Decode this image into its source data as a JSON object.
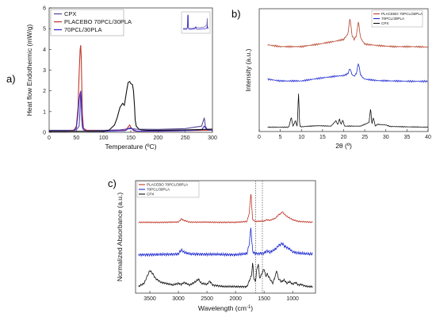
{
  "chart_data": [
    {
      "panel": "a)",
      "type": "line",
      "xlabel": "Temperature (ºC)",
      "ylabel": "Heat flow Endothermic (mW/g)",
      "xlim": [
        0,
        300
      ],
      "ylim": [
        0,
        6
      ],
      "xticks": [
        0,
        50,
        100,
        150,
        200,
        250,
        300
      ],
      "yticks": [
        0,
        1,
        2,
        3,
        4,
        5,
        6
      ],
      "legend_position": "top-left",
      "grid": false,
      "inset": true,
      "series": [
        {
          "name": "CPX",
          "color": "#5b4a9c",
          "x": [
            0,
            40,
            50,
            55,
            57,
            58,
            59,
            60,
            61,
            63,
            70,
            100,
            130,
            140,
            150,
            160,
            200,
            250,
            280,
            285,
            287,
            290,
            300
          ],
          "y": [
            0.1,
            0.1,
            0.12,
            0.3,
            1.2,
            2.0,
            1.5,
            0.6,
            0.25,
            0.12,
            0.1,
            0.1,
            0.12,
            0.15,
            0.18,
            0.15,
            0.14,
            0.18,
            0.3,
            0.7,
            0.3,
            0.15,
            0.15
          ]
        },
        {
          "name": "PLACEBO 70PCL/30PLA",
          "color": "#c0392b",
          "x": [
            0,
            30,
            45,
            50,
            53,
            55,
            57,
            58,
            59,
            60,
            61,
            63,
            70,
            100,
            140,
            145,
            148,
            150,
            155,
            160,
            200,
            250,
            300
          ],
          "y": [
            0.05,
            0.05,
            0.08,
            0.3,
            1.2,
            2.8,
            4.0,
            4.2,
            3.6,
            2.2,
            0.9,
            0.2,
            0.08,
            0.05,
            0.1,
            0.25,
            0.35,
            0.25,
            0.08,
            0.05,
            0.05,
            0.08,
            0.1
          ]
        },
        {
          "name": "70PCL/30PLA",
          "color": "#3a2bd0",
          "x": [
            0,
            30,
            45,
            50,
            53,
            55,
            57,
            58,
            59,
            60,
            61,
            63,
            70,
            100,
            140,
            145,
            150,
            155,
            160,
            200,
            250,
            280,
            285,
            290,
            300
          ],
          "y": [
            0.05,
            0.05,
            0.06,
            0.2,
            0.9,
            1.6,
            1.9,
            1.95,
            1.6,
            0.9,
            0.4,
            0.12,
            0.05,
            0.05,
            0.08,
            0.18,
            0.22,
            0.12,
            0.06,
            0.06,
            0.08,
            0.12,
            0.3,
            0.12,
            0.1
          ]
        },
        {
          "name": "",
          "color": "#111111",
          "x": [
            0,
            50,
            100,
            110,
            120,
            125,
            130,
            135,
            138,
            140,
            143,
            145,
            148,
            150,
            153,
            155,
            157,
            158,
            160,
            165,
            170,
            180,
            200,
            250,
            300
          ],
          "y": [
            0.05,
            0.05,
            0.05,
            0.1,
            0.35,
            0.7,
            1.2,
            1.4,
            1.3,
            1.6,
            2.1,
            2.4,
            2.45,
            2.35,
            2.3,
            2.0,
            1.2,
            0.6,
            0.3,
            0.15,
            0.12,
            0.1,
            0.1,
            0.12,
            0.15
          ]
        }
      ]
    },
    {
      "panel": "b)",
      "type": "line",
      "xlabel": "2θ (º)",
      "ylabel": "Intensity (a.u.)",
      "xlim": [
        0,
        40
      ],
      "xticks": [
        0,
        5,
        10,
        15,
        20,
        25,
        30,
        35,
        40
      ],
      "legend_position": "top-right",
      "series": [
        {
          "name": "PLACEBO 70PCL/30PLA",
          "color": "#b5432a",
          "offset": 2.2,
          "x": [
            2,
            5,
            10,
            14,
            18,
            20,
            21,
            21.5,
            22,
            22.5,
            23,
            23.5,
            24,
            24.5,
            25,
            28,
            32,
            36,
            40
          ],
          "y": [
            0.1,
            0.05,
            0.05,
            0.12,
            0.2,
            0.25,
            0.4,
            0.85,
            0.35,
            0.25,
            0.35,
            0.75,
            0.3,
            0.2,
            0.12,
            0.08,
            0.05,
            0.05,
            0.04
          ]
        },
        {
          "name": "70PCL/30PLA",
          "color": "#1f2ad0",
          "offset": 1.25,
          "x": [
            2,
            5,
            10,
            14,
            18,
            20,
            21,
            21.5,
            22,
            22.5,
            23,
            23.5,
            24,
            24.5,
            25,
            28,
            32,
            36,
            40
          ],
          "y": [
            0.1,
            0.05,
            0.05,
            0.12,
            0.18,
            0.2,
            0.25,
            0.4,
            0.22,
            0.18,
            0.25,
            0.55,
            0.22,
            0.15,
            0.1,
            0.06,
            0.05,
            0.04,
            0.04
          ]
        },
        {
          "name": "CPX",
          "color": "#111111",
          "offset": 0,
          "x": [
            2,
            7,
            7.6,
            8,
            8.6,
            9,
            9.3,
            9.6,
            10,
            12,
            14,
            17,
            18.2,
            18.6,
            19,
            19.4,
            19.8,
            20.2,
            22,
            24,
            26,
            26.4,
            26.7,
            27,
            27.5,
            28,
            30,
            31,
            35,
            40
          ],
          "y": [
            0.02,
            0.02,
            0.3,
            0.05,
            0.2,
            0.02,
            1.0,
            0.05,
            0.03,
            0.05,
            0.06,
            0.05,
            0.2,
            0.08,
            0.25,
            0.1,
            0.22,
            0.05,
            0.05,
            0.05,
            0.15,
            0.55,
            0.1,
            0.3,
            0.05,
            0.1,
            0.08,
            0.04,
            0.03,
            0.02
          ]
        }
      ]
    },
    {
      "panel": "c)",
      "type": "line",
      "xlabel": "Wavelength (cm-1)",
      "ylabel": "Normalized Absorbance (a.u.)",
      "xlim": [
        3750,
        600
      ],
      "xticks": [
        3500,
        3000,
        2500,
        2000,
        1500,
        1000
      ],
      "reference_lines": [
        1650,
        1530
      ],
      "legend_position": "top-left",
      "series": [
        {
          "name": "PLACEBO 70PCL/30PLA",
          "color": "#c0392b",
          "offset": 2.0,
          "x": [
            3600,
            3400,
            3000,
            2950,
            2900,
            2800,
            2000,
            1800,
            1760,
            1730,
            1720,
            1700,
            1650,
            1500,
            1450,
            1400,
            1300,
            1250,
            1200,
            1180,
            1150,
            1100,
            1050,
            1000,
            900,
            800,
            700
          ],
          "y": [
            0.02,
            0.02,
            0.03,
            0.12,
            0.08,
            0.03,
            0.02,
            0.05,
            0.3,
            0.95,
            0.6,
            0.1,
            0.05,
            0.06,
            0.1,
            0.08,
            0.15,
            0.25,
            0.3,
            0.35,
            0.28,
            0.2,
            0.15,
            0.1,
            0.05,
            0.04,
            0.03
          ]
        },
        {
          "name": "70PCL/30PLA",
          "color": "#1f2ad0",
          "offset": 1.0,
          "x": [
            3600,
            3400,
            3000,
            2950,
            2900,
            2800,
            2000,
            1800,
            1760,
            1730,
            1720,
            1700,
            1650,
            1500,
            1450,
            1400,
            1300,
            1250,
            1200,
            1180,
            1150,
            1100,
            1050,
            1000,
            900,
            800,
            700
          ],
          "y": [
            0.03,
            0.03,
            0.05,
            0.18,
            0.1,
            0.05,
            0.03,
            0.06,
            0.35,
            0.9,
            0.55,
            0.12,
            0.06,
            0.08,
            0.15,
            0.1,
            0.2,
            0.3,
            0.35,
            0.38,
            0.3,
            0.25,
            0.2,
            0.12,
            0.08,
            0.06,
            0.05
          ]
        },
        {
          "name": "CPX",
          "color": "#111111",
          "offset": 0,
          "x": [
            3700,
            3600,
            3550,
            3500,
            3450,
            3400,
            3300,
            3100,
            3000,
            2950,
            2900,
            2800,
            2700,
            2650,
            2600,
            2500,
            2450,
            2400,
            2200,
            2000,
            1800,
            1720,
            1700,
            1680,
            1650,
            1630,
            1600,
            1580,
            1550,
            1500,
            1470,
            1450,
            1400,
            1350,
            1300,
            1280,
            1250,
            1200,
            1150,
            1100,
            1050,
            1000,
            950,
            900,
            850,
            800,
            750,
            700
          ],
          "y": [
            0.05,
            0.15,
            0.35,
            0.55,
            0.45,
            0.3,
            0.18,
            0.1,
            0.15,
            0.12,
            0.18,
            0.1,
            0.2,
            0.28,
            0.15,
            0.12,
            0.22,
            0.1,
            0.05,
            0.05,
            0.05,
            0.4,
            0.8,
            0.3,
            0.2,
            0.55,
            0.75,
            0.3,
            0.4,
            0.6,
            0.35,
            0.45,
            0.3,
            0.15,
            0.4,
            0.55,
            0.3,
            0.2,
            0.25,
            0.15,
            0.2,
            0.12,
            0.18,
            0.1,
            0.12,
            0.08,
            0.06,
            0.05
          ]
        }
      ]
    }
  ]
}
